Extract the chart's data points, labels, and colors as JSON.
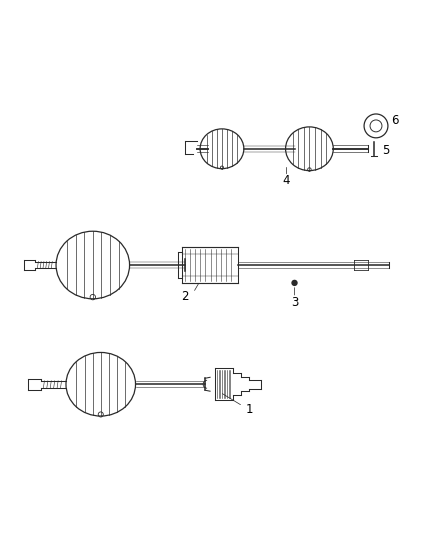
{
  "background_color": "#ffffff",
  "fig_width": 4.38,
  "fig_height": 5.33,
  "dpi": 100,
  "line_color": "#2a2a2a",
  "label_color": "#000000",
  "lw": 0.75
}
